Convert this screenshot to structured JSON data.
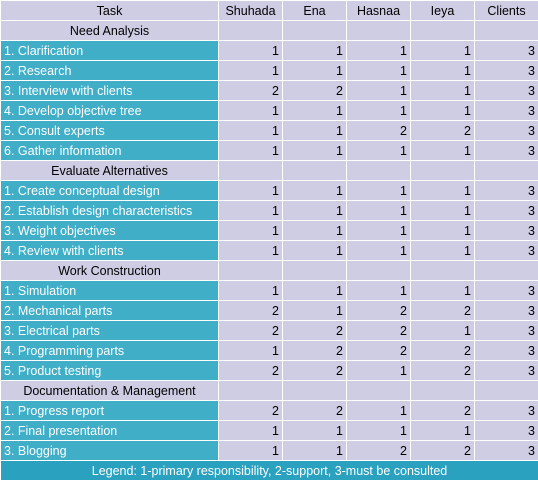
{
  "columns": [
    "Task",
    "Shuhada",
    "Ena",
    "Hasnaa",
    "Ieya",
    "Clients"
  ],
  "sections": [
    {
      "title": "Need Analysis",
      "rows": [
        {
          "task": "1. Clarification",
          "values": [
            "1",
            "1",
            "1",
            "1",
            "3"
          ]
        },
        {
          "task": "2. Research",
          "values": [
            "1",
            "1",
            "1",
            "1",
            "3"
          ]
        },
        {
          "task": "3. Interview with clients",
          "values": [
            "2",
            "2",
            "1",
            "1",
            "3"
          ]
        },
        {
          "task": "4. Develop objective tree",
          "values": [
            "1",
            "1",
            "1",
            "1",
            "3"
          ]
        },
        {
          "task": "5. Consult experts",
          "values": [
            "1",
            "1",
            "2",
            "2",
            "3"
          ]
        },
        {
          "task": "6. Gather information",
          "values": [
            "1",
            "1",
            "1",
            "1",
            "3"
          ]
        }
      ]
    },
    {
      "title": "Evaluate Alternatives",
      "rows": [
        {
          "task": "1. Create conceptual design",
          "values": [
            "1",
            "1",
            "1",
            "1",
            "3"
          ]
        },
        {
          "task": "2. Establish design characteristics",
          "values": [
            "1",
            "1",
            "1",
            "1",
            "3"
          ]
        },
        {
          "task": "3. Weight objectives",
          "values": [
            "1",
            "1",
            "1",
            "1",
            "3"
          ]
        },
        {
          "task": "4. Review with clients",
          "values": [
            "1",
            "1",
            "1",
            "1",
            "3"
          ]
        }
      ]
    },
    {
      "title": "Work Construction",
      "rows": [
        {
          "task": "1. Simulation",
          "values": [
            "1",
            "1",
            "1",
            "1",
            "3"
          ]
        },
        {
          "task": "2. Mechanical parts",
          "values": [
            "2",
            "1",
            "2",
            "2",
            "3"
          ]
        },
        {
          "task": "3. Electrical parts",
          "values": [
            "2",
            "2",
            "2",
            "1",
            "3"
          ]
        },
        {
          "task": "4. Programming parts",
          "values": [
            "1",
            "2",
            "2",
            "2",
            "3"
          ]
        },
        {
          "task": "5. Product testing",
          "values": [
            "2",
            "2",
            "1",
            "2",
            "3"
          ]
        }
      ]
    },
    {
      "title": "Documentation & Management",
      "rows": [
        {
          "task": "1. Progress report",
          "values": [
            "2",
            "2",
            "1",
            "2",
            "3"
          ]
        },
        {
          "task": "2. Final presentation",
          "values": [
            "1",
            "1",
            "1",
            "1",
            "3"
          ]
        },
        {
          "task": "3. Blogging",
          "values": [
            "1",
            "1",
            "2",
            "2",
            "3"
          ]
        }
      ]
    }
  ],
  "legend": "Legend: 1-primary responsibility, 2-support, 3-must be consulted",
  "colors": {
    "header_bg": "#cfcde4",
    "task_bg": "#40aec7",
    "legend_bg": "#2aa1bf"
  }
}
